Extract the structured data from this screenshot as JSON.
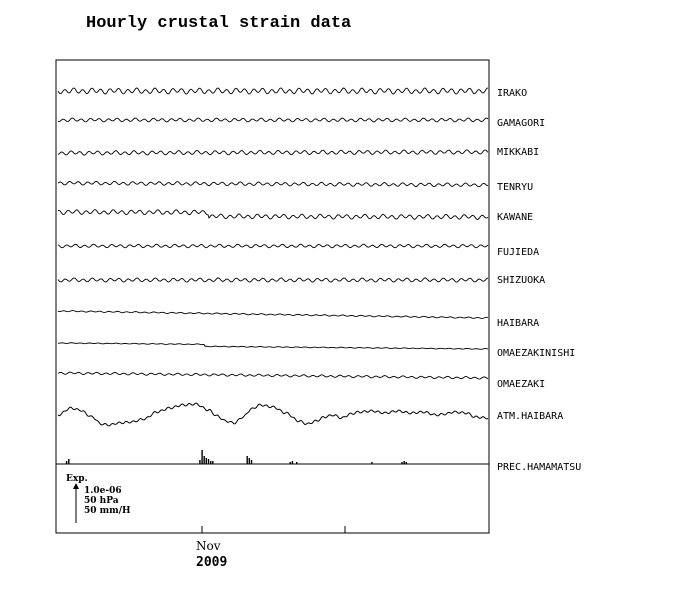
{
  "chart_data": {
    "type": "line",
    "title": "Hourly crustal strain data",
    "x_ticks": [
      {
        "label": "Nov",
        "year": "2009"
      }
    ],
    "series": [
      {
        "name": "IRAKO",
        "wave_amp": 2.2,
        "wave_period": 9,
        "trend": 0,
        "steps": []
      },
      {
        "name": "GAMAGORI",
        "wave_amp": 1.4,
        "wave_period": 9,
        "trend": 0,
        "steps": []
      },
      {
        "name": "MIKKABI",
        "wave_amp": 1.6,
        "wave_period": 9,
        "trend": -1,
        "steps": []
      },
      {
        "name": "TENRYU",
        "wave_amp": 1.4,
        "wave_period": 9,
        "trend": 2,
        "steps": []
      },
      {
        "name": "KAWANE",
        "wave_amp": 1.8,
        "wave_period": 9,
        "trend": 1,
        "steps": [
          {
            "at": 0.35,
            "dy": 4
          }
        ]
      },
      {
        "name": "FUJIEDA",
        "wave_amp": 1.3,
        "wave_period": 9,
        "trend": 0,
        "steps": []
      },
      {
        "name": "SHIZUOKA",
        "wave_amp": 1.5,
        "wave_period": 9,
        "trend": 0,
        "steps": []
      },
      {
        "name": "HAIBARA",
        "wave_amp": 0.5,
        "wave_period": 9,
        "trend": 7,
        "steps": []
      },
      {
        "name": "OMAEZAKINISHI",
        "wave_amp": 0.3,
        "wave_period": 9,
        "trend": 4,
        "steps": [
          {
            "at": 0.34,
            "dy": 2
          }
        ]
      },
      {
        "name": "OMAEZAKI",
        "wave_amp": 0.9,
        "wave_period": 9,
        "trend": 5,
        "steps": []
      }
    ],
    "atm_series": {
      "name": "ATM.HAIBARA",
      "profile": [
        [
          0.0,
          0
        ],
        [
          0.03,
          7
        ],
        [
          0.05,
          5
        ],
        [
          0.08,
          -2
        ],
        [
          0.1,
          -9
        ],
        [
          0.12,
          -10
        ],
        [
          0.14,
          -8
        ],
        [
          0.17,
          -7
        ],
        [
          0.2,
          -4
        ],
        [
          0.23,
          3
        ],
        [
          0.26,
          7
        ],
        [
          0.29,
          10
        ],
        [
          0.32,
          11
        ],
        [
          0.35,
          5
        ],
        [
          0.37,
          -1
        ],
        [
          0.39,
          -6
        ],
        [
          0.41,
          -8
        ],
        [
          0.43,
          -2
        ],
        [
          0.45,
          6
        ],
        [
          0.47,
          10
        ],
        [
          0.5,
          8
        ],
        [
          0.53,
          2
        ],
        [
          0.56,
          -6
        ],
        [
          0.58,
          -9
        ],
        [
          0.6,
          -6
        ],
        [
          0.62,
          -2
        ],
        [
          0.64,
          0
        ],
        [
          0.66,
          -3
        ],
        [
          0.68,
          1
        ],
        [
          0.7,
          3
        ],
        [
          0.73,
          4
        ],
        [
          0.76,
          2
        ],
        [
          0.79,
          4
        ],
        [
          0.82,
          2
        ],
        [
          0.85,
          3
        ],
        [
          0.88,
          0
        ],
        [
          0.9,
          1
        ],
        [
          0.92,
          3
        ],
        [
          0.95,
          2
        ],
        [
          0.97,
          -2
        ],
        [
          1.0,
          -3
        ]
      ]
    },
    "precip_series": {
      "name": "PREC.HAMAMATSU",
      "bars": [
        [
          0.02,
          3
        ],
        [
          0.025,
          5
        ],
        [
          0.33,
          4
        ],
        [
          0.335,
          14
        ],
        [
          0.34,
          8
        ],
        [
          0.345,
          6
        ],
        [
          0.35,
          5
        ],
        [
          0.355,
          3
        ],
        [
          0.36,
          3
        ],
        [
          0.44,
          8
        ],
        [
          0.445,
          6
        ],
        [
          0.45,
          4
        ],
        [
          0.54,
          2
        ],
        [
          0.545,
          3
        ],
        [
          0.555,
          2
        ],
        [
          0.73,
          2
        ],
        [
          0.8,
          2
        ],
        [
          0.805,
          3
        ],
        [
          0.81,
          2
        ]
      ]
    },
    "scale_legend": {
      "label": "Exp.",
      "lines": [
        "1.0e-06",
        "50 hPa",
        "50 mm/H"
      ]
    }
  }
}
